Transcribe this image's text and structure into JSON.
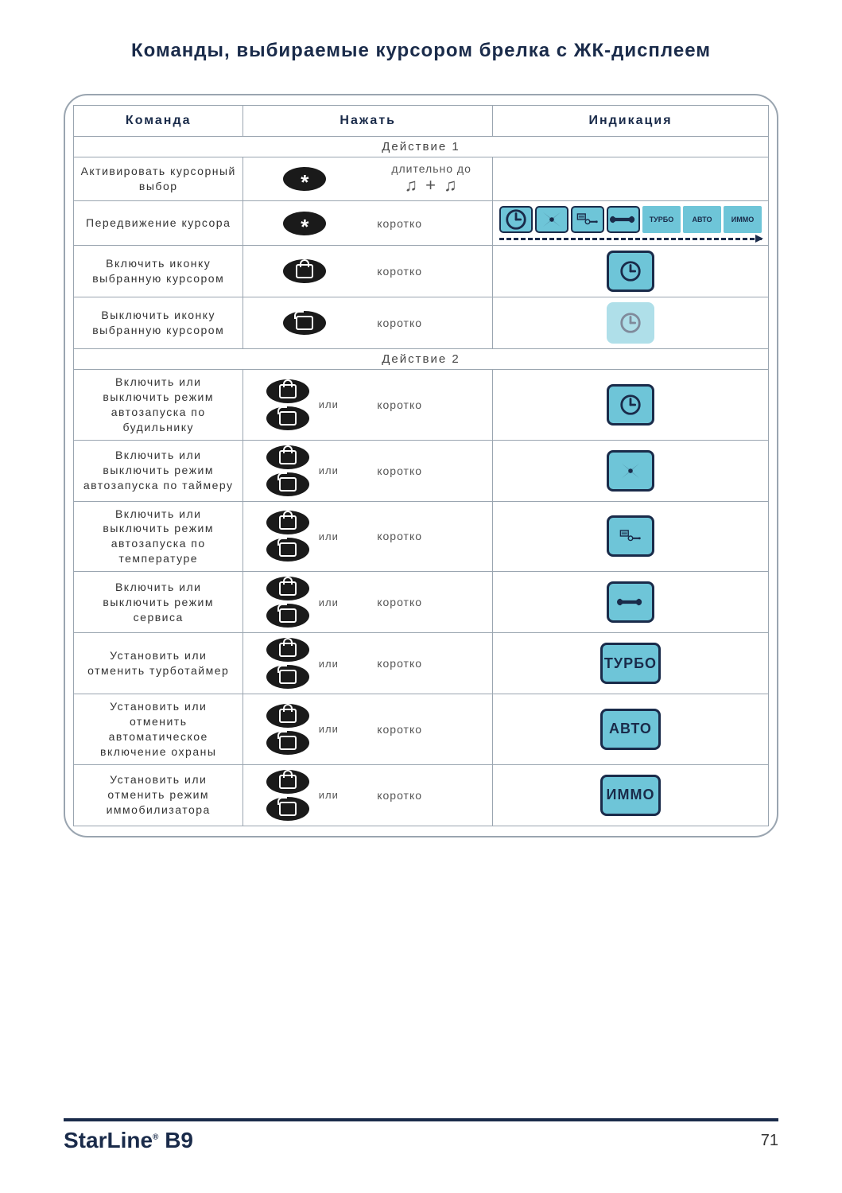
{
  "title": "Команды, выбираемые курсором брелка с ЖК-дисплеем",
  "headers": {
    "command": "Команда",
    "press": "Нажать",
    "indication": "Индикация"
  },
  "section1_label": "Действие 1",
  "section2_label": "Действие 2",
  "press_labels": {
    "long_until": "длительно до",
    "short": "коротко",
    "or": "или"
  },
  "rows1": [
    {
      "cmd": "Активировать курсорный выбор",
      "btn": "star",
      "label": "long_until",
      "ind": "notes"
    },
    {
      "cmd": "Передвижение курсора",
      "btn": "star",
      "label": "short",
      "ind": "strip"
    },
    {
      "cmd": "Включить иконку выбранную курсором",
      "btn": "lock",
      "label": "short",
      "ind": "clock-on"
    },
    {
      "cmd": "Выключить иконку выбранную курсором",
      "btn": "unlock",
      "label": "short",
      "ind": "clock-off"
    }
  ],
  "rows2": [
    {
      "cmd": "Включить или выключить режим автозапуска по будильнику",
      "ind": "clock"
    },
    {
      "cmd": "Включить или выключить режим автозапуска по таймеру",
      "ind": "fan"
    },
    {
      "cmd": "Включить или выключить режим автозапуска по температуре",
      "ind": "temp"
    },
    {
      "cmd": "Включить или выключить режим сервиса",
      "ind": "wrench"
    },
    {
      "cmd": "Установить или отменить турботаймер",
      "ind": "text",
      "text": "ТУРБО"
    },
    {
      "cmd": "Установить или отменить автоматическое включение охраны",
      "ind": "text",
      "text": "АВТО"
    },
    {
      "cmd": "Установить или отменить режим иммобилизатора",
      "ind": "text",
      "text": "ИММО"
    }
  ],
  "strip_icons": [
    "clock",
    "fan",
    "temp",
    "wrench"
  ],
  "strip_texts": [
    "ТУРБО",
    "АВТО",
    "ИММО"
  ],
  "colors": {
    "accent": "#6ec5d8",
    "ink": "#1a2b4a",
    "border": "#9aa5b0"
  },
  "footer": {
    "brand_strong": "StarLine",
    "brand_model": "B9",
    "page_number": "71"
  }
}
